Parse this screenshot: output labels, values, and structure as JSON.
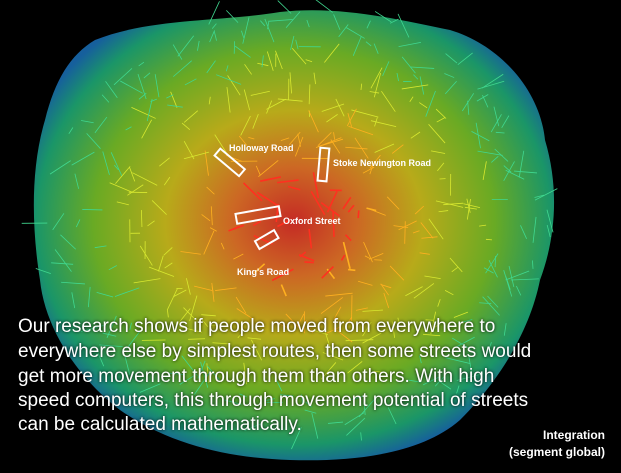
{
  "map": {
    "labels": [
      "Holloway Road",
      "Stoke Newington Road",
      "Oxford Street",
      "King's Road"
    ]
  },
  "caption": {
    "lines": [
      "Our research shows if people moved from everywhere to",
      "everywhere else by simplest routes, then some streets would",
      "get more movement through them than others. With high",
      "speed computers, this through movement potential of streets",
      "can be calculated mathematically."
    ]
  },
  "legend": {
    "title": "Integration",
    "subtitle": "(segment global)"
  }
}
